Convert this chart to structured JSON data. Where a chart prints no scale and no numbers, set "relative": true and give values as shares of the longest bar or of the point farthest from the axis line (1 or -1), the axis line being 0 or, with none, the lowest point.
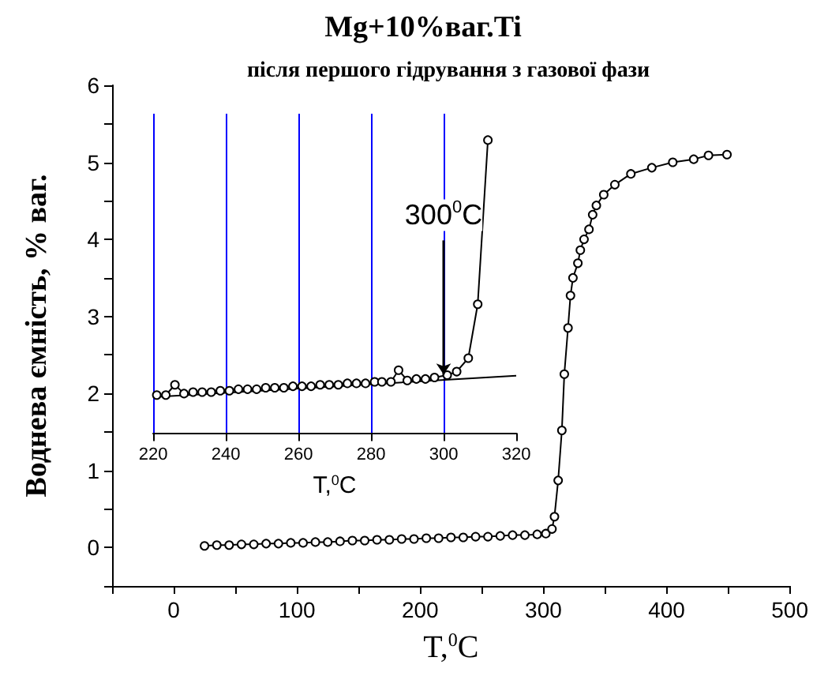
{
  "chart_data": [
    {
      "type": "line",
      "title": "Mg+10%ваг.Ti",
      "subtitle": "після першого гідрування з газової фази",
      "xlabel": "T,$^{0}$C",
      "ylabel": "Воднева ємність, % ваг.",
      "marker": "circle",
      "line_style": "solid",
      "xlim": [
        -50,
        500
      ],
      "xticks": [
        {
          "value": -50,
          "label": null
        },
        0,
        {
          "value": 50,
          "label": null
        },
        100,
        {
          "value": 150,
          "label": null
        },
        200,
        {
          "value": 250,
          "label": null
        },
        300,
        {
          "value": 350,
          "label": null
        },
        400,
        {
          "value": 450,
          "label": null
        },
        500
      ],
      "ylim": [
        -0.5,
        6
      ],
      "yticks": [
        {
          "value": -0.5,
          "label": null
        },
        0,
        {
          "value": 0.5,
          "label": null
        },
        1,
        {
          "value": 1.5,
          "label": null
        },
        2,
        {
          "value": 2.5,
          "label": null
        },
        3,
        {
          "value": 3.5,
          "label": null
        },
        4,
        {
          "value": 4.5,
          "label": null
        },
        5,
        {
          "value": 5.5,
          "label": null
        },
        6
      ],
      "series": [
        {
          "color": "#000000",
          "x": [
            25,
            35,
            45,
            55,
            65,
            75,
            85,
            95,
            105,
            115,
            125,
            135,
            145,
            155,
            165,
            175,
            185,
            195,
            205,
            215,
            225,
            235,
            245,
            255,
            265,
            275,
            285,
            295,
            302,
            307,
            309,
            312,
            315,
            317,
            320,
            322,
            324,
            328,
            330,
            333,
            337,
            340,
            343,
            349,
            358,
            371,
            388,
            405,
            422,
            434,
            449
          ],
          "values": [
            0.02,
            0.03,
            0.03,
            0.04,
            0.04,
            0.05,
            0.05,
            0.06,
            0.06,
            0.07,
            0.07,
            0.08,
            0.09,
            0.09,
            0.1,
            0.1,
            0.11,
            0.11,
            0.12,
            0.12,
            0.13,
            0.13,
            0.14,
            0.14,
            0.15,
            0.16,
            0.16,
            0.17,
            0.18,
            0.24,
            0.4,
            0.87,
            1.52,
            2.25,
            2.85,
            3.27,
            3.5,
            3.69,
            3.86,
            4.0,
            4.13,
            4.32,
            4.44,
            4.58,
            4.71,
            4.85,
            4.93,
            5.0,
            5.04,
            5.09,
            5.1
          ]
        }
      ]
    },
    {
      "type": "line",
      "relative": true,
      "xlabel": "T,$^{0}$C",
      "marker": "circle",
      "grid": "x",
      "tick_labels": "x",
      "xlim": [
        220,
        320
      ],
      "xticks": [
        220,
        240,
        260,
        280,
        300,
        320
      ],
      "annotations": [
        {
          "text": "300$^{0}$C",
          "x": 300,
          "y": 0.2
        }
      ],
      "series": [
        {
          "color": "#000000",
          "x": [
            221,
            223.5,
            226,
            228.5,
            231,
            233.5,
            236,
            238.5,
            241,
            243.5,
            246,
            248.5,
            251,
            253.5,
            256,
            258.5,
            261,
            263.5,
            266,
            268.5,
            271,
            273.5,
            276,
            278.5,
            281,
            283,
            285.5,
            287.6,
            290,
            292.5,
            295,
            297.5,
            301,
            303.6,
            306.8,
            309.4,
            312.2
          ],
          "values": [
            0.13,
            0.13,
            0.165,
            0.135,
            0.14,
            0.14,
            0.14,
            0.145,
            0.145,
            0.15,
            0.15,
            0.15,
            0.155,
            0.155,
            0.155,
            0.16,
            0.16,
            0.16,
            0.165,
            0.165,
            0.165,
            0.17,
            0.17,
            0.17,
            0.175,
            0.175,
            0.175,
            0.215,
            0.18,
            0.185,
            0.185,
            0.19,
            0.198,
            0.21,
            0.256,
            0.44,
            1.0
          ]
        },
        {
          "marker": "none",
          "color": "#000000",
          "x": [
            220,
            320
          ],
          "values": [
            0.123,
            0.196
          ]
        }
      ]
    }
  ]
}
